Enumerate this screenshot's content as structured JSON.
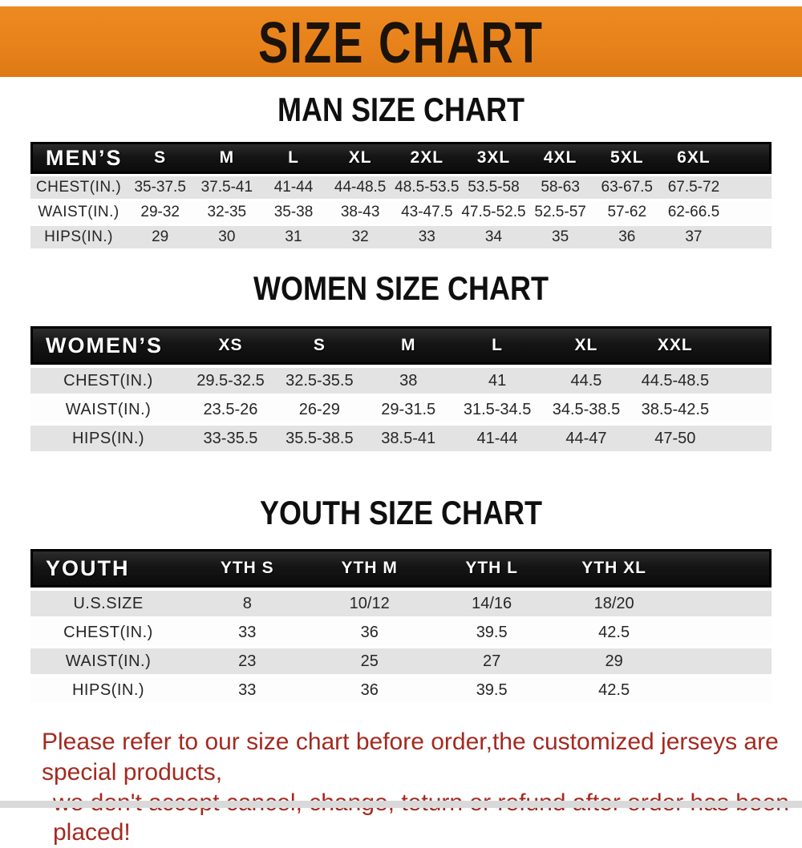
{
  "banner": {
    "title": "SIZE CHART",
    "bg_color": "#e8821b",
    "text_color": "#1b1208"
  },
  "sections": [
    {
      "heading": "MAN SIZE CHART",
      "header_label": "MEN’S",
      "columns": [
        "S",
        "M",
        "L",
        "XL",
        "2XL",
        "3XL",
        "4XL",
        "5XL",
        "6XL"
      ],
      "rows": [
        {
          "label": "CHEST(IN.)",
          "values": [
            "35-37.5",
            "37.5-41",
            "41-44",
            "44-48.5",
            "48.5-53.5",
            "53.5-58",
            "58-63",
            "63-67.5",
            "67.5-72"
          ]
        },
        {
          "label": "WAIST(IN.)",
          "values": [
            "29-32",
            "32-35",
            "35-38",
            "38-43",
            "43-47.5",
            "47.5-52.5",
            "52.5-57",
            "57-62",
            "62-66.5"
          ]
        },
        {
          "label": "HIPS(IN.)",
          "values": [
            "29",
            "30",
            "31",
            "32",
            "33",
            "34",
            "35",
            "36",
            "37"
          ]
        }
      ]
    },
    {
      "heading": "WOMEN SIZE CHART",
      "header_label": "WOMEN’S",
      "columns": [
        "XS",
        "S",
        "M",
        "L",
        "XL",
        "XXL"
      ],
      "rows": [
        {
          "label": "CHEST(IN.)",
          "values": [
            "29.5-32.5",
            "32.5-35.5",
            "38",
            "41",
            "44.5",
            "44.5-48.5"
          ]
        },
        {
          "label": "WAIST(IN.)",
          "values": [
            "23.5-26",
            "26-29",
            "29-31.5",
            "31.5-34.5",
            "34.5-38.5",
            "38.5-42.5"
          ]
        },
        {
          "label": "HIPS(IN.)",
          "values": [
            "33-35.5",
            "35.5-38.5",
            "38.5-41",
            "41-44",
            "44-47",
            "47-50"
          ]
        }
      ]
    },
    {
      "heading": "YOUTH SIZE CHART",
      "header_label": "YOUTH",
      "columns": [
        "YTH S",
        "YTH M",
        "YTH L",
        "YTH XL"
      ],
      "rows": [
        {
          "label": "U.S.SIZE",
          "values": [
            "8",
            "10/12",
            "14/16",
            "18/20"
          ]
        },
        {
          "label": "CHEST(IN.)",
          "values": [
            "33",
            "36",
            "39.5",
            "42.5"
          ]
        },
        {
          "label": "WAIST(IN.)",
          "values": [
            "23",
            "25",
            "27",
            "29"
          ]
        },
        {
          "label": "HIPS(IN.)",
          "values": [
            "33",
            "36",
            "39.5",
            "42.5"
          ]
        }
      ]
    }
  ],
  "disclaimer": {
    "line1": "Please refer to our size chart before order,the customized jerseys are special products,",
    "line2": "we don't accept cancel, change, teturn or refund after order has been placed!",
    "color": "#a32a20"
  }
}
